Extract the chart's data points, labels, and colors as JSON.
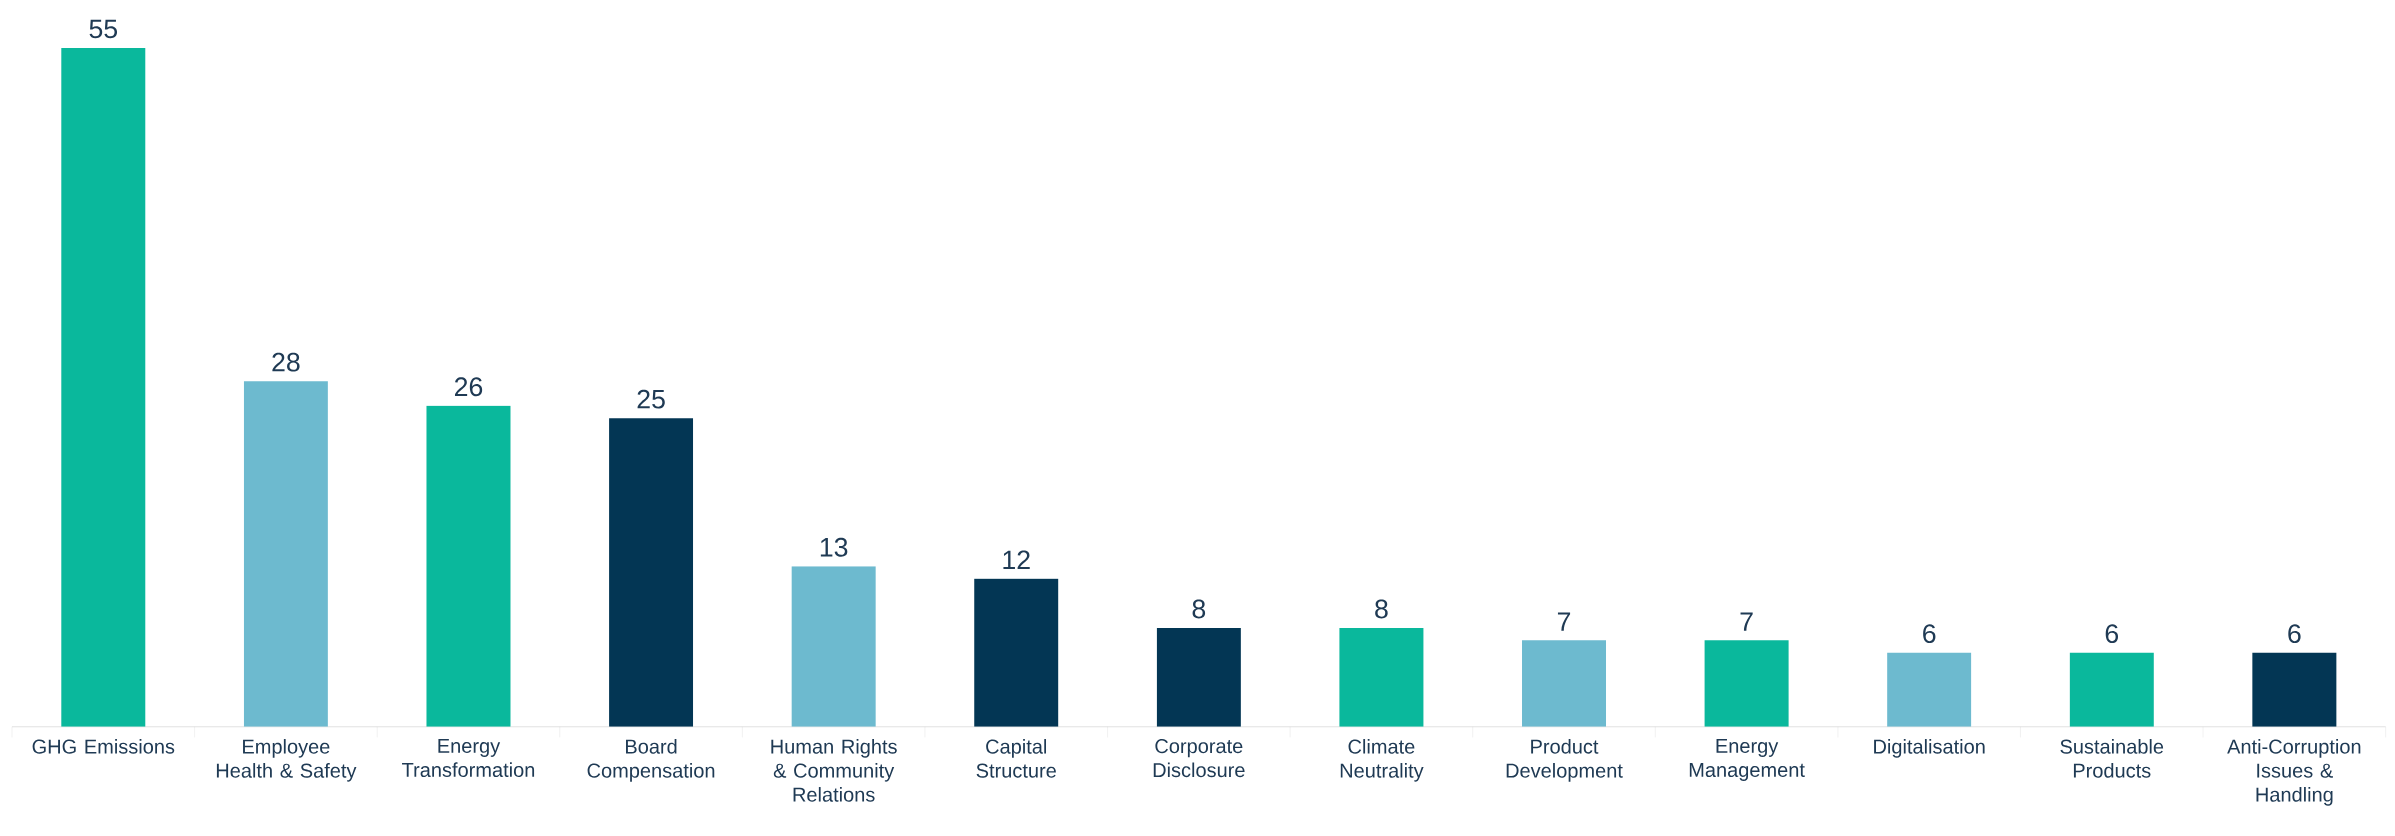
{
  "chart_data": {
    "type": "bar",
    "categories": [
      "GHG Emissions",
      "Employee Health & Safety",
      "Energy Transformation",
      "Board Compensation",
      "Human Rights & Community Relations",
      "Capital Structure",
      "Corporate Disclosure",
      "Climate Neutrality",
      "Product Development",
      "Energy Management",
      "Digitalisation",
      "Sustainable Products",
      "Anti-Corruption Issues & Handling"
    ],
    "values": [
      55,
      28,
      26,
      25,
      13,
      12,
      8,
      8,
      7,
      7,
      6,
      6,
      6
    ],
    "colors": [
      "#0ab89c",
      "#6dbacf",
      "#0ab89c",
      "#033654",
      "#6dbacf",
      "#033654",
      "#033654",
      "#0ab89c",
      "#6dbacf",
      "#0ab89c",
      "#6dbacf",
      "#0ab89c",
      "#033654"
    ],
    "data_labels": true
  }
}
